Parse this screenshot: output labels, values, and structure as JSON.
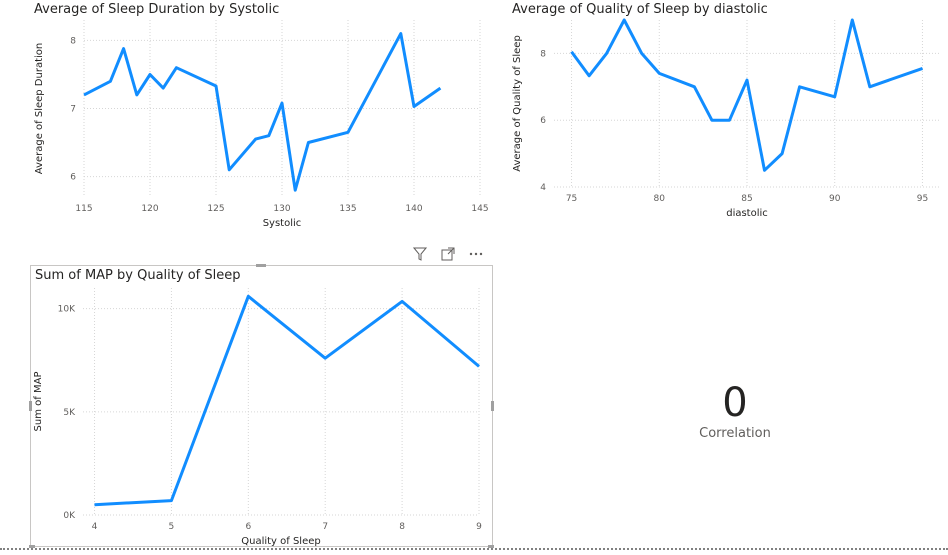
{
  "visual_header": {
    "filter_icon": "filter-icon",
    "focus_icon": "focus-mode-icon",
    "more_icon": "more-options-icon"
  },
  "card": {
    "value": "0",
    "label": "Correlation"
  },
  "chart_data": [
    {
      "type": "line",
      "title": "Average of Sleep Duration by Systolic",
      "xlabel": "Systolic",
      "ylabel": "Average of Sleep Duration",
      "xlim": [
        115,
        145
      ],
      "ylim": [
        5.7,
        8.3
      ],
      "xticks": [
        115,
        120,
        125,
        130,
        135,
        140,
        145
      ],
      "yticks": [
        6,
        7,
        8
      ],
      "ytick_labels": [
        "6",
        "7",
        "8"
      ],
      "grid": true,
      "color": "#118dff",
      "x": [
        115,
        117,
        118,
        119,
        120,
        121,
        122,
        125,
        126,
        128,
        129,
        130,
        131,
        132,
        135,
        139,
        140,
        142
      ],
      "y": [
        7.2,
        7.4,
        7.88,
        7.2,
        7.5,
        7.3,
        7.6,
        7.33,
        6.1,
        6.55,
        6.6,
        7.08,
        5.8,
        6.5,
        6.65,
        8.1,
        7.03,
        7.3
      ]
    },
    {
      "type": "line",
      "title": "Average of Quality of Sleep by diastolic",
      "xlabel": "diastolic",
      "ylabel": "Average of Quality of Sleep",
      "xlim": [
        74,
        96
      ],
      "ylim": [
        4,
        9
      ],
      "xticks": [
        75,
        80,
        85,
        90,
        95
      ],
      "yticks": [
        4,
        6,
        8
      ],
      "ytick_labels": [
        "4",
        "6",
        "8"
      ],
      "grid": true,
      "color": "#118dff",
      "x": [
        75,
        76,
        77,
        78,
        79,
        80,
        82,
        83,
        84,
        85,
        86,
        87,
        88,
        90,
        91,
        92,
        95
      ],
      "y": [
        8.05,
        7.33,
        8.0,
        9.0,
        8.0,
        7.4,
        7.0,
        6.0,
        6.0,
        7.2,
        4.5,
        5.0,
        7.0,
        6.7,
        9.0,
        7.0,
        7.55
      ]
    },
    {
      "type": "line",
      "title": "Sum of MAP by Quality of Sleep",
      "xlabel": "Quality of Sleep",
      "ylabel": "Sum of MAP",
      "xlim": [
        3.85,
        9.0
      ],
      "ylim": [
        0,
        11000
      ],
      "xticks": [
        4,
        5,
        6,
        7,
        8,
        9
      ],
      "yticks": [
        0,
        5000,
        10000
      ],
      "ytick_labels": [
        "0K",
        "5K",
        "10K"
      ],
      "grid": true,
      "color": "#118dff",
      "x": [
        4,
        5,
        6,
        7,
        8,
        9
      ],
      "y": [
        500,
        700,
        10600,
        7600,
        10350,
        7200
      ]
    }
  ]
}
